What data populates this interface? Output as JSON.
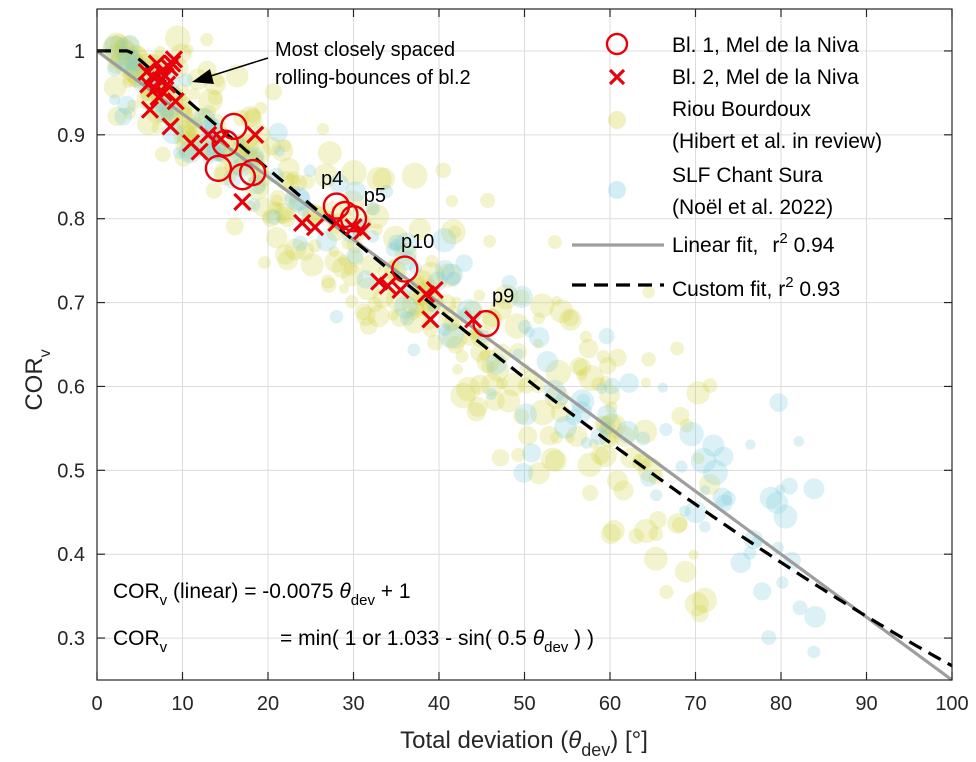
{
  "chart_data": {
    "type": "scatter",
    "title": "",
    "xlabel": "Total deviation (",
    "xlabel_sym": "θ",
    "xlabel_sub": "dev",
    "xlabel_tail": ") [°]",
    "ylabel": "COR",
    "ylabel_sub": "v",
    "xlim": [
      0,
      100
    ],
    "ylim": [
      0.25,
      1.05
    ],
    "grid": true,
    "legend_position": "top-right",
    "xticks": [
      "0",
      "10",
      "20",
      "30",
      "40",
      "50",
      "60",
      "70",
      "80",
      "90",
      "100"
    ],
    "yticks": [
      "0.3",
      "0.4",
      "0.5",
      "0.6",
      "0.7",
      "0.8",
      "0.9",
      "1"
    ],
    "colors": {
      "bl1": "#e8000b",
      "bl2": "#e8000b",
      "riou": "#d5d34a",
      "slf": "#7ecbe0",
      "linear": "#9e9e9e",
      "custom": "#000000"
    },
    "series": [
      {
        "name": "Bl. 1, Mel de la Niva",
        "marker": "circle",
        "x": [
          14.2,
          15,
          16,
          17,
          18.2,
          28,
          29,
          30,
          36,
          45.5
        ],
        "y": [
          0.86,
          0.89,
          0.91,
          0.85,
          0.855,
          0.815,
          0.805,
          0.8,
          0.74,
          0.675
        ]
      },
      {
        "name": "Bl. 2, Mel de la Niva",
        "marker": "x",
        "x": [
          6,
          6.5,
          7,
          7.5,
          8,
          8.5,
          9,
          6.8,
          7.2,
          7.8,
          8.2,
          9.2,
          6.2,
          7.4,
          5.8,
          8.8,
          8.6,
          11,
          12,
          13,
          14.5,
          17,
          18.5,
          24,
          25.5,
          28,
          30,
          31,
          33,
          34,
          35.5,
          38.5,
          39.5,
          39,
          44
        ],
        "y": [
          0.96,
          0.97,
          0.985,
          0.975,
          0.97,
          0.98,
          0.99,
          0.955,
          0.945,
          0.95,
          0.96,
          0.94,
          0.93,
          0.965,
          0.975,
          0.985,
          0.91,
          0.89,
          0.88,
          0.9,
          0.895,
          0.82,
          0.9,
          0.795,
          0.79,
          0.795,
          0.79,
          0.785,
          0.725,
          0.72,
          0.715,
          0.71,
          0.715,
          0.68,
          0.68
        ]
      },
      {
        "name": "Riou Bourdoux",
        "name2": "(Hibert et al. in review)",
        "marker": "filled-circle-translucent",
        "seed": 7,
        "count": 360
      },
      {
        "name": "SLF Chant Sura",
        "name2": "(Noël et al. 2022)",
        "marker": "filled-circle-translucent",
        "seed": 13,
        "count": 150
      },
      {
        "name": "Linear fit,",
        "stat": "r",
        "stat_sup": "2",
        "stat_val": " 0.94",
        "style": "solid",
        "slope": -0.0075,
        "intercept": 1
      },
      {
        "name": "Custom fit, r",
        "stat_sup": "2",
        "stat_val": " 0.93",
        "style": "dashed",
        "formula": "min(1, 1.033 - sin(0.5 theta))"
      }
    ],
    "annotations": {
      "arrow_text_1": "Most closely spaced",
      "arrow_text_2": "rolling-bounces of bl.2",
      "point_labels": [
        {
          "text": "p4",
          "x": 27.5,
          "y": 0.84
        },
        {
          "text": "p5",
          "x": 32.5,
          "y": 0.82
        },
        {
          "text": "p10",
          "x": 37.5,
          "y": 0.765
        },
        {
          "text": "p9",
          "x": 47.5,
          "y": 0.7
        }
      ],
      "eq1_prefix": "COR",
      "eq1_sub": "v",
      "eq1_text": " (linear) = -0.0075 ",
      "eq1_sym": "θ",
      "eq1_symsub": "dev",
      "eq1_tail": " + 1",
      "eq2_prefix": "COR",
      "eq2_sub": "v",
      "eq2_text": "= min( 1 or 1.033 - sin( 0.5 ",
      "eq2_sym": "θ",
      "eq2_symsub": "dev",
      "eq2_tail": " ) )"
    }
  }
}
